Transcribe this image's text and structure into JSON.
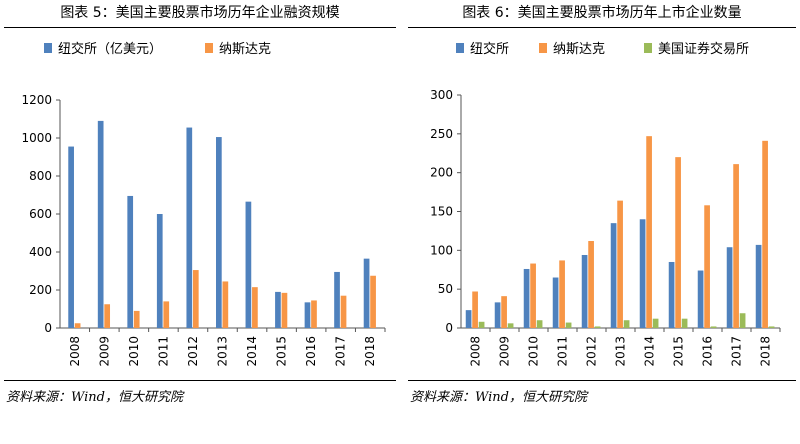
{
  "page": {
    "left_title": "图表 5：美国主要股票市场历年企业融资规模",
    "right_title": "图表 6：美国主要股票市场历年上市企业数量",
    "left_source": "资料来源：Wind，恒大研究院",
    "right_source": "资料来源：Wind，恒大研究院"
  },
  "colors": {
    "blue": "#4f81bd",
    "orange": "#f79646",
    "green": "#9bbb59"
  },
  "chart_data": [
    {
      "type": "bar",
      "title": "图表 5：美国主要股票市场历年企业融资规模",
      "categories": [
        "2008",
        "2009",
        "2010",
        "2011",
        "2012",
        "2013",
        "2014",
        "2015",
        "2016",
        "2017",
        "2018"
      ],
      "series": [
        {
          "name": "纽交所（亿美元）",
          "color": "#4f81bd",
          "values": [
            955,
            1090,
            695,
            600,
            1055,
            1005,
            665,
            190,
            135,
            295,
            365
          ]
        },
        {
          "name": "纳斯达克",
          "color": "#f79646",
          "values": [
            25,
            125,
            90,
            140,
            305,
            245,
            215,
            185,
            145,
            170,
            275
          ]
        }
      ],
      "ylim": [
        0,
        1200
      ],
      "yticks": [
        "0",
        "200",
        "400",
        "600",
        "800",
        "1000",
        "1200"
      ],
      "legend": "top",
      "grid": false
    },
    {
      "type": "bar",
      "title": "图表 6：美国主要股票市场历年上市企业数量",
      "categories": [
        "2008",
        "2009",
        "2010",
        "2011",
        "2012",
        "2013",
        "2014",
        "2015",
        "2016",
        "2017",
        "2018"
      ],
      "series": [
        {
          "name": "纽交所",
          "color": "#4f81bd",
          "values": [
            23,
            33,
            76,
            65,
            94,
            135,
            140,
            85,
            74,
            104,
            107
          ]
        },
        {
          "name": "纳斯达克",
          "color": "#f79646",
          "values": [
            47,
            41,
            83,
            87,
            112,
            164,
            247,
            220,
            158,
            211,
            241
          ]
        },
        {
          "name": "美国证券交易所",
          "color": "#9bbb59",
          "values": [
            8,
            6,
            10,
            7,
            2,
            10,
            12,
            12,
            2,
            19,
            2
          ]
        }
      ],
      "ylim": [
        0,
        300
      ],
      "yticks": [
        "0",
        "50",
        "100",
        "150",
        "200",
        "250",
        "300"
      ],
      "legend": "top",
      "grid": false
    }
  ]
}
